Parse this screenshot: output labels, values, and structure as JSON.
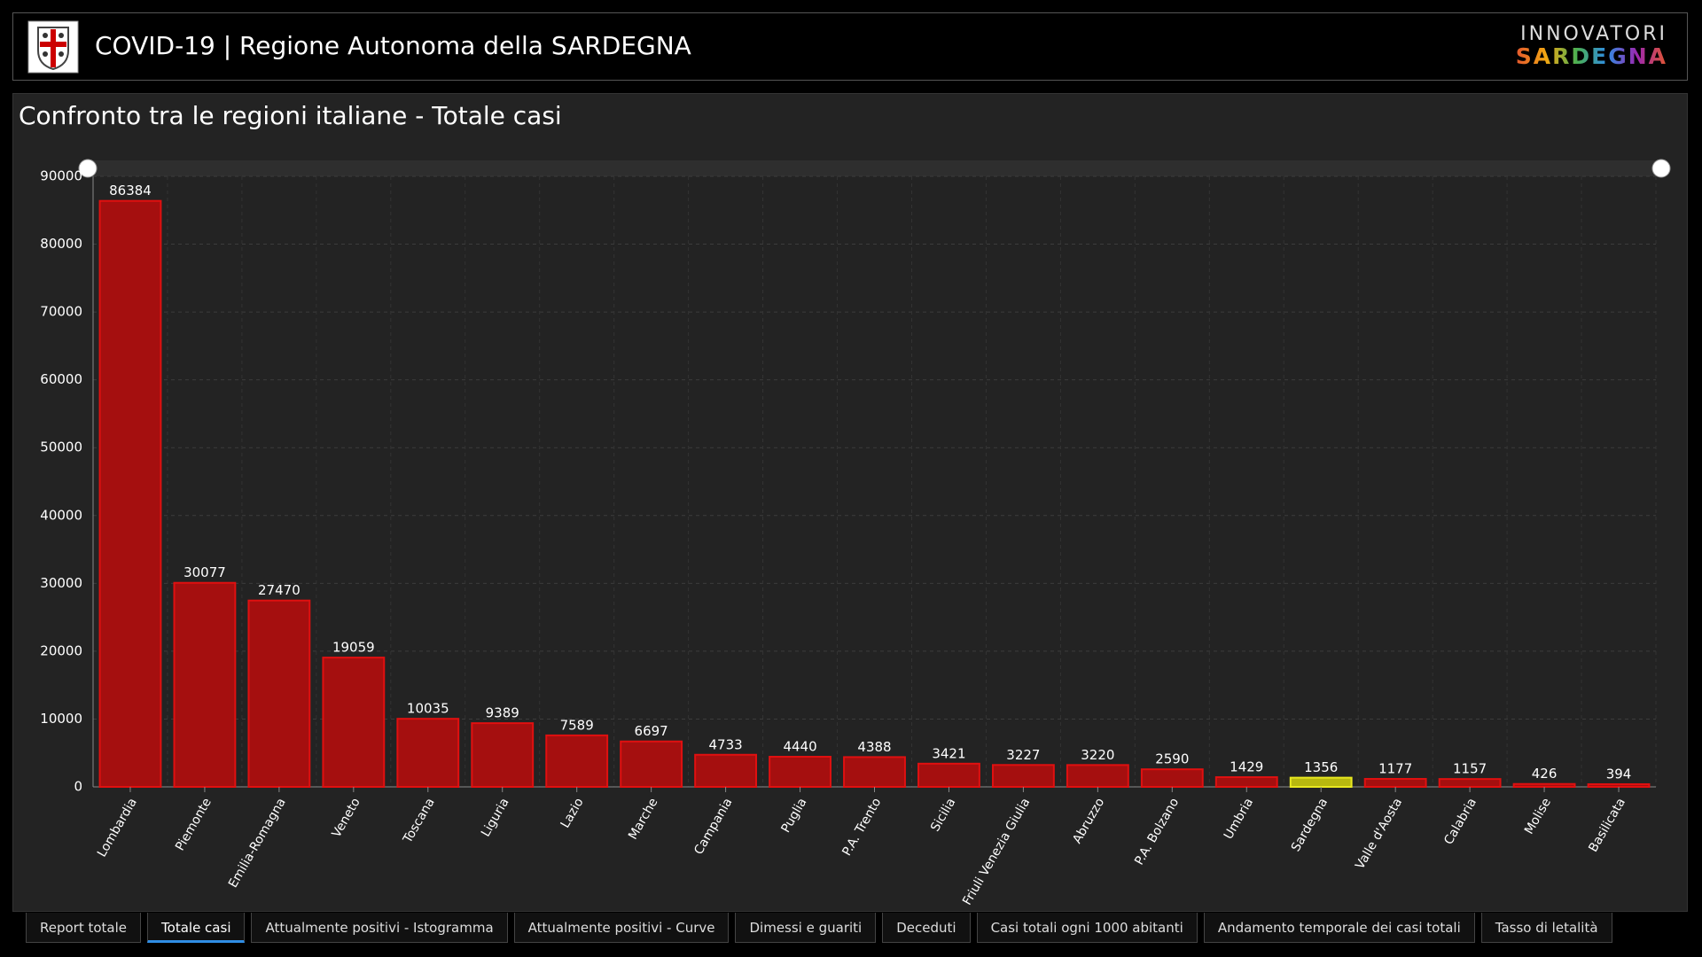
{
  "header": {
    "title": "COVID-19 | Regione Autonoma della SARDEGNA",
    "brand_top": "INNOVATORI",
    "brand_bottom": "SARDEGNA"
  },
  "chart_data": {
    "type": "bar",
    "title": "Confronto tra le regioni italiane - Totale casi",
    "categories": [
      "Lombardia",
      "Piemonte",
      "Emilia-Romagna",
      "Veneto",
      "Toscana",
      "Liguria",
      "Lazio",
      "Marche",
      "Campania",
      "Puglia",
      "P.A. Trento",
      "Sicilia",
      "Friuli Venezia Giulia",
      "Abruzzo",
      "P.A. Bolzano",
      "Umbria",
      "Sardegna",
      "Valle d'Aosta",
      "Calabria",
      "Molise",
      "Basilicata"
    ],
    "values": [
      86384,
      30077,
      27470,
      19059,
      10035,
      9389,
      7589,
      6697,
      4733,
      4440,
      4388,
      3421,
      3227,
      3220,
      2590,
      1429,
      1356,
      1177,
      1157,
      426,
      394
    ],
    "colors": [
      "#a50f0f",
      "#a50f0f",
      "#a50f0f",
      "#a50f0f",
      "#a50f0f",
      "#a50f0f",
      "#a50f0f",
      "#a50f0f",
      "#a50f0f",
      "#a50f0f",
      "#a50f0f",
      "#a50f0f",
      "#a50f0f",
      "#a50f0f",
      "#a50f0f",
      "#a50f0f",
      "#b8b80f",
      "#a50f0f",
      "#a50f0f",
      "#a50f0f",
      "#a50f0f"
    ],
    "ylim": [
      0,
      90000
    ],
    "yticks": [
      0,
      10000,
      20000,
      30000,
      40000,
      50000,
      60000,
      70000,
      80000,
      90000
    ],
    "grid": true
  },
  "tabs": [
    {
      "label": "Report totale",
      "active": false
    },
    {
      "label": "Totale casi",
      "active": true
    },
    {
      "label": "Attualmente positivi - Istogramma",
      "active": false
    },
    {
      "label": "Attualmente positivi - Curve",
      "active": false
    },
    {
      "label": "Dimessi e guariti",
      "active": false
    },
    {
      "label": "Deceduti",
      "active": false
    },
    {
      "label": "Casi totali ogni 1000 abitanti",
      "active": false
    },
    {
      "label": "Andamento temporale dei casi totali",
      "active": false
    },
    {
      "label": "Tasso di letalità",
      "active": false
    }
  ]
}
